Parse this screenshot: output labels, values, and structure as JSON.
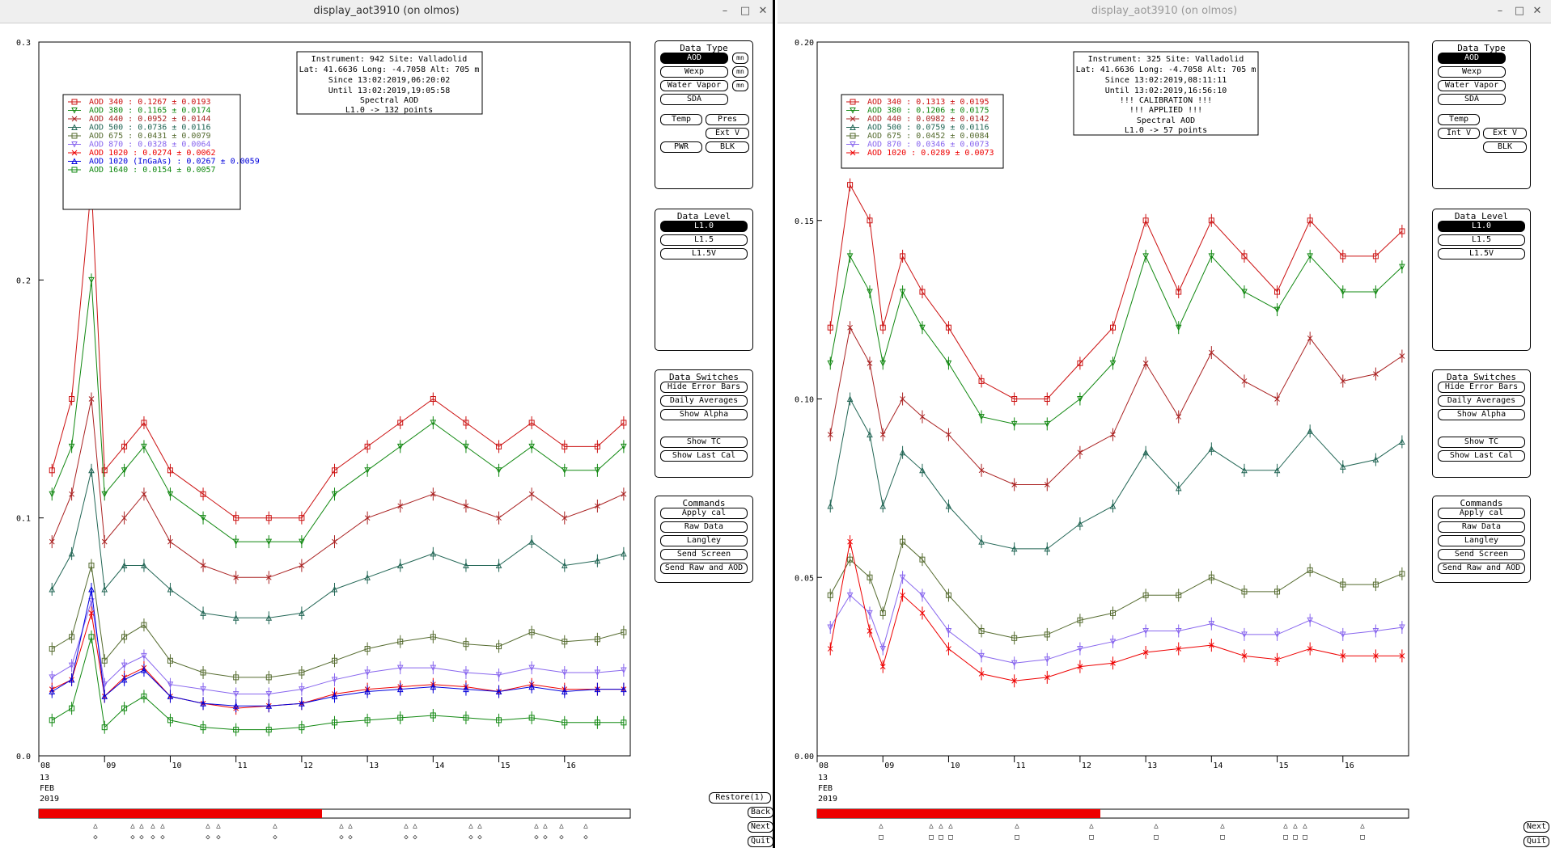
{
  "windows": [
    {
      "title": "display_aot3910 (on olmos)",
      "window_controls": [
        "–",
        "□",
        "✕"
      ],
      "info_lines": [
        "Instrument: 942 Site: Valladolid",
        "Lat: 41.6636 Long: -4.7058 Alt: 705 m",
        "Since 13:02:2019,06:20:02",
        "Until 13:02:2019,19:05:58",
        "Spectral AOD",
        "L1.0 -> 132 points"
      ],
      "legend": [
        {
          "label": "AOD 340",
          "stat": ": 0.1267 ± 0.0193",
          "color": "#cc1111",
          "marker": "square"
        },
        {
          "label": "AOD 380",
          "stat": ": 0.1165 ± 0.0174",
          "color": "#118811",
          "marker": "tri-down"
        },
        {
          "label": "AOD 440",
          "stat": ": 0.0952 ± 0.0144",
          "color": "#aa2222",
          "marker": "x"
        },
        {
          "label": "AOD 500",
          "stat": ": 0.0736 ± 0.0116",
          "color": "#226655",
          "marker": "tri-up"
        },
        {
          "label": "AOD 675",
          "stat": ": 0.0431 ± 0.0079",
          "color": "#556b2f",
          "marker": "square"
        },
        {
          "label": "AOD 870",
          "stat": ": 0.0328 ± 0.0064",
          "color": "#8866ee",
          "marker": "tri-down"
        },
        {
          "label": "AOD 1020",
          "stat": " : 0.0274 ± 0.0062",
          "color": "#ee0000",
          "marker": "x"
        },
        {
          "label": "AOD 1020 (InGaAs)",
          "stat": " : 0.0267 ± 0.0059",
          "color": "#0000dd",
          "marker": "tri-up"
        },
        {
          "label": "AOD 1640",
          "stat": " : 0.0154 ± 0.0057",
          "color": "#118811",
          "marker": "square"
        }
      ],
      "y_ticks": [
        "0.3",
        "0.2",
        "0.1",
        "0.0"
      ],
      "x_ticks": [
        "08",
        "09",
        "10",
        "11",
        "12",
        "13",
        "14",
        "15",
        "16"
      ],
      "date_label": [
        "13",
        "FEB",
        "2019"
      ],
      "nav_buttons": [
        "Restore(1)",
        "Back",
        "Next",
        "Quit"
      ],
      "data_type": {
        "title": "Data Type",
        "buttons": [
          "AOD",
          "Wexp",
          "Water Vapor",
          "SDA",
          "Temp",
          "Pres",
          "Ext V",
          "PWR",
          "BLK"
        ],
        "mini": [
          "mn",
          "mn",
          "mn"
        ]
      },
      "data_level": {
        "title": "Data Level",
        "buttons": [
          "L1.0",
          "L1.5",
          "L1.5V"
        ]
      },
      "data_switches": {
        "title": "Data Switches",
        "buttons": [
          "Hide Error Bars",
          "Daily Averages",
          "Show Alpha",
          "Show TC",
          "Show Last Cal"
        ]
      },
      "commands": {
        "title": "Commands",
        "buttons": [
          "Apply cal",
          "Raw Data",
          "Langley",
          "Send Screen",
          "Send Raw and AOD"
        ]
      }
    },
    {
      "title": "display_aot3910 (on olmos)",
      "window_controls": [
        "–",
        "□",
        "✕"
      ],
      "info_lines": [
        "Instrument: 325 Site: Valladolid",
        "Lat: 41.6636 Long: -4.7058 Alt: 705 m",
        "Since 13:02:2019,08:11:11",
        "Until 13:02:2019,16:56:10",
        "!!! CALIBRATION !!!",
        "!!!  APPLIED  !!!",
        "Spectral AOD",
        "L1.0 -> 57 points"
      ],
      "legend": [
        {
          "label": "AOD 340",
          "stat": ": 0.1313 ± 0.0195",
          "color": "#cc1111",
          "marker": "square"
        },
        {
          "label": "AOD 380",
          "stat": ": 0.1206 ± 0.0175",
          "color": "#118811",
          "marker": "tri-down"
        },
        {
          "label": "AOD 440",
          "stat": ": 0.0982 ± 0.0142",
          "color": "#aa2222",
          "marker": "x"
        },
        {
          "label": "AOD 500",
          "stat": ": 0.0759 ± 0.0116",
          "color": "#226655",
          "marker": "tri-up"
        },
        {
          "label": "AOD 675",
          "stat": ": 0.0452 ± 0.0084",
          "color": "#556b2f",
          "marker": "square"
        },
        {
          "label": "AOD 870",
          "stat": ": 0.0346 ± 0.0073",
          "color": "#8866ee",
          "marker": "tri-down"
        },
        {
          "label": "AOD 1020",
          "stat": " : 0.0289 ± 0.0073",
          "color": "#ee0000",
          "marker": "x"
        }
      ],
      "y_ticks": [
        "0.20",
        "0.15",
        "0.10",
        "0.05",
        "0.00"
      ],
      "x_ticks": [
        "08",
        "09",
        "10",
        "11",
        "12",
        "13",
        "14",
        "15",
        "16"
      ],
      "date_label": [
        "13",
        "FEB",
        "2019"
      ],
      "nav_buttons": [
        "Next",
        "Quit"
      ],
      "data_type": {
        "title": "Data Type",
        "buttons": [
          "AOD",
          "Wexp",
          "Water Vapor",
          "SDA",
          "Temp",
          "Int V",
          "Ext V",
          "BLK"
        ]
      },
      "data_level": {
        "title": "Data Level",
        "buttons": [
          "L1.0",
          "L1.5",
          "L1.5V"
        ]
      },
      "data_switches": {
        "title": "Data Switches",
        "buttons": [
          "Hide Error Bars",
          "Daily Averages",
          "Show Alpha",
          "Show TC",
          "Show Last Cal"
        ]
      },
      "commands": {
        "title": "Commands",
        "buttons": [
          "Apply cal",
          "Raw Data",
          "Langley",
          "Send Screen",
          "Send Raw and AOD"
        ]
      }
    }
  ],
  "chart_data": [
    {
      "type": "line",
      "title": "",
      "xlabel": "",
      "ylabel": "",
      "x_unit": "hour (UTC)",
      "ylim": [
        0,
        0.3
      ],
      "xlim": [
        8,
        17
      ],
      "x": [
        8.2,
        8.5,
        8.8,
        9.0,
        9.3,
        9.6,
        10.0,
        10.5,
        11.0,
        11.5,
        12.0,
        12.5,
        13.0,
        13.5,
        14.0,
        14.5,
        15.0,
        15.5,
        16.0,
        16.5,
        16.9
      ],
      "series": [
        {
          "name": "AOD 340",
          "values": [
            0.12,
            0.15,
            0.24,
            0.12,
            0.13,
            0.14,
            0.12,
            0.11,
            0.1,
            0.1,
            0.1,
            0.12,
            0.13,
            0.14,
            0.15,
            0.14,
            0.13,
            0.14,
            0.13,
            0.13,
            0.14
          ]
        },
        {
          "name": "AOD 380",
          "values": [
            0.11,
            0.13,
            0.2,
            0.11,
            0.12,
            0.13,
            0.11,
            0.1,
            0.09,
            0.09,
            0.09,
            0.11,
            0.12,
            0.13,
            0.14,
            0.13,
            0.12,
            0.13,
            0.12,
            0.12,
            0.13
          ]
        },
        {
          "name": "AOD 440",
          "values": [
            0.09,
            0.11,
            0.15,
            0.09,
            0.1,
            0.11,
            0.09,
            0.08,
            0.075,
            0.075,
            0.08,
            0.09,
            0.1,
            0.105,
            0.11,
            0.105,
            0.1,
            0.11,
            0.1,
            0.105,
            0.11
          ]
        },
        {
          "name": "AOD 500",
          "values": [
            0.07,
            0.085,
            0.12,
            0.07,
            0.08,
            0.08,
            0.07,
            0.06,
            0.058,
            0.058,
            0.06,
            0.07,
            0.075,
            0.08,
            0.085,
            0.08,
            0.08,
            0.09,
            0.08,
            0.082,
            0.085
          ]
        },
        {
          "name": "AOD 675",
          "values": [
            0.045,
            0.05,
            0.08,
            0.04,
            0.05,
            0.055,
            0.04,
            0.035,
            0.033,
            0.033,
            0.035,
            0.04,
            0.045,
            0.048,
            0.05,
            0.047,
            0.046,
            0.052,
            0.048,
            0.049,
            0.052
          ]
        },
        {
          "name": "AOD 870",
          "values": [
            0.033,
            0.038,
            0.065,
            0.03,
            0.038,
            0.042,
            0.03,
            0.028,
            0.026,
            0.026,
            0.028,
            0.032,
            0.035,
            0.037,
            0.037,
            0.035,
            0.034,
            0.037,
            0.035,
            0.035,
            0.036
          ]
        },
        {
          "name": "AOD 1020",
          "values": [
            0.028,
            0.032,
            0.06,
            0.025,
            0.033,
            0.037,
            0.025,
            0.022,
            0.02,
            0.021,
            0.022,
            0.026,
            0.028,
            0.029,
            0.03,
            0.029,
            0.027,
            0.03,
            0.028,
            0.028,
            0.028
          ]
        },
        {
          "name": "AOD 1020 (InGaAs)",
          "values": [
            0.027,
            0.032,
            0.07,
            0.025,
            0.032,
            0.036,
            0.025,
            0.022,
            0.021,
            0.021,
            0.022,
            0.025,
            0.027,
            0.028,
            0.029,
            0.028,
            0.027,
            0.029,
            0.027,
            0.028,
            0.028
          ]
        },
        {
          "name": "AOD 1640",
          "values": [
            0.015,
            0.02,
            0.05,
            0.012,
            0.02,
            0.025,
            0.015,
            0.012,
            0.011,
            0.011,
            0.012,
            0.014,
            0.015,
            0.016,
            0.017,
            0.016,
            0.015,
            0.016,
            0.014,
            0.014,
            0.014
          ]
        }
      ]
    },
    {
      "type": "line",
      "title": "",
      "xlabel": "",
      "ylabel": "",
      "x_unit": "hour (UTC)",
      "ylim": [
        0,
        0.2
      ],
      "xlim": [
        8,
        17
      ],
      "x": [
        8.2,
        8.5,
        8.8,
        9.0,
        9.3,
        9.6,
        10.0,
        10.5,
        11.0,
        11.5,
        12.0,
        12.5,
        13.0,
        13.5,
        14.0,
        14.5,
        15.0,
        15.5,
        16.0,
        16.5,
        16.9
      ],
      "series": [
        {
          "name": "AOD 340",
          "values": [
            0.12,
            0.16,
            0.15,
            0.12,
            0.14,
            0.13,
            0.12,
            0.105,
            0.1,
            0.1,
            0.11,
            0.12,
            0.15,
            0.13,
            0.15,
            0.14,
            0.13,
            0.15,
            0.14,
            0.14,
            0.147
          ]
        },
        {
          "name": "AOD 380",
          "values": [
            0.11,
            0.14,
            0.13,
            0.11,
            0.13,
            0.12,
            0.11,
            0.095,
            0.093,
            0.093,
            0.1,
            0.11,
            0.14,
            0.12,
            0.14,
            0.13,
            0.125,
            0.14,
            0.13,
            0.13,
            0.137
          ]
        },
        {
          "name": "AOD 440",
          "values": [
            0.09,
            0.12,
            0.11,
            0.09,
            0.1,
            0.095,
            0.09,
            0.08,
            0.076,
            0.076,
            0.085,
            0.09,
            0.11,
            0.095,
            0.113,
            0.105,
            0.1,
            0.117,
            0.105,
            0.107,
            0.112
          ]
        },
        {
          "name": "AOD 500",
          "values": [
            0.07,
            0.1,
            0.09,
            0.07,
            0.085,
            0.08,
            0.07,
            0.06,
            0.058,
            0.058,
            0.065,
            0.07,
            0.085,
            0.075,
            0.086,
            0.08,
            0.08,
            0.091,
            0.081,
            0.083,
            0.088
          ]
        },
        {
          "name": "AOD 675",
          "values": [
            0.045,
            0.055,
            0.05,
            0.04,
            0.06,
            0.055,
            0.045,
            0.035,
            0.033,
            0.034,
            0.038,
            0.04,
            0.045,
            0.045,
            0.05,
            0.046,
            0.046,
            0.052,
            0.048,
            0.048,
            0.051
          ]
        },
        {
          "name": "AOD 870",
          "values": [
            0.036,
            0.045,
            0.04,
            0.03,
            0.05,
            0.045,
            0.035,
            0.028,
            0.026,
            0.027,
            0.03,
            0.032,
            0.035,
            0.035,
            0.037,
            0.034,
            0.034,
            0.038,
            0.034,
            0.035,
            0.036
          ]
        },
        {
          "name": "AOD 1020",
          "values": [
            0.03,
            0.06,
            0.035,
            0.025,
            0.045,
            0.04,
            0.03,
            0.023,
            0.021,
            0.022,
            0.025,
            0.026,
            0.029,
            0.03,
            0.031,
            0.028,
            0.027,
            0.03,
            0.028,
            0.028,
            0.028
          ]
        }
      ]
    }
  ]
}
